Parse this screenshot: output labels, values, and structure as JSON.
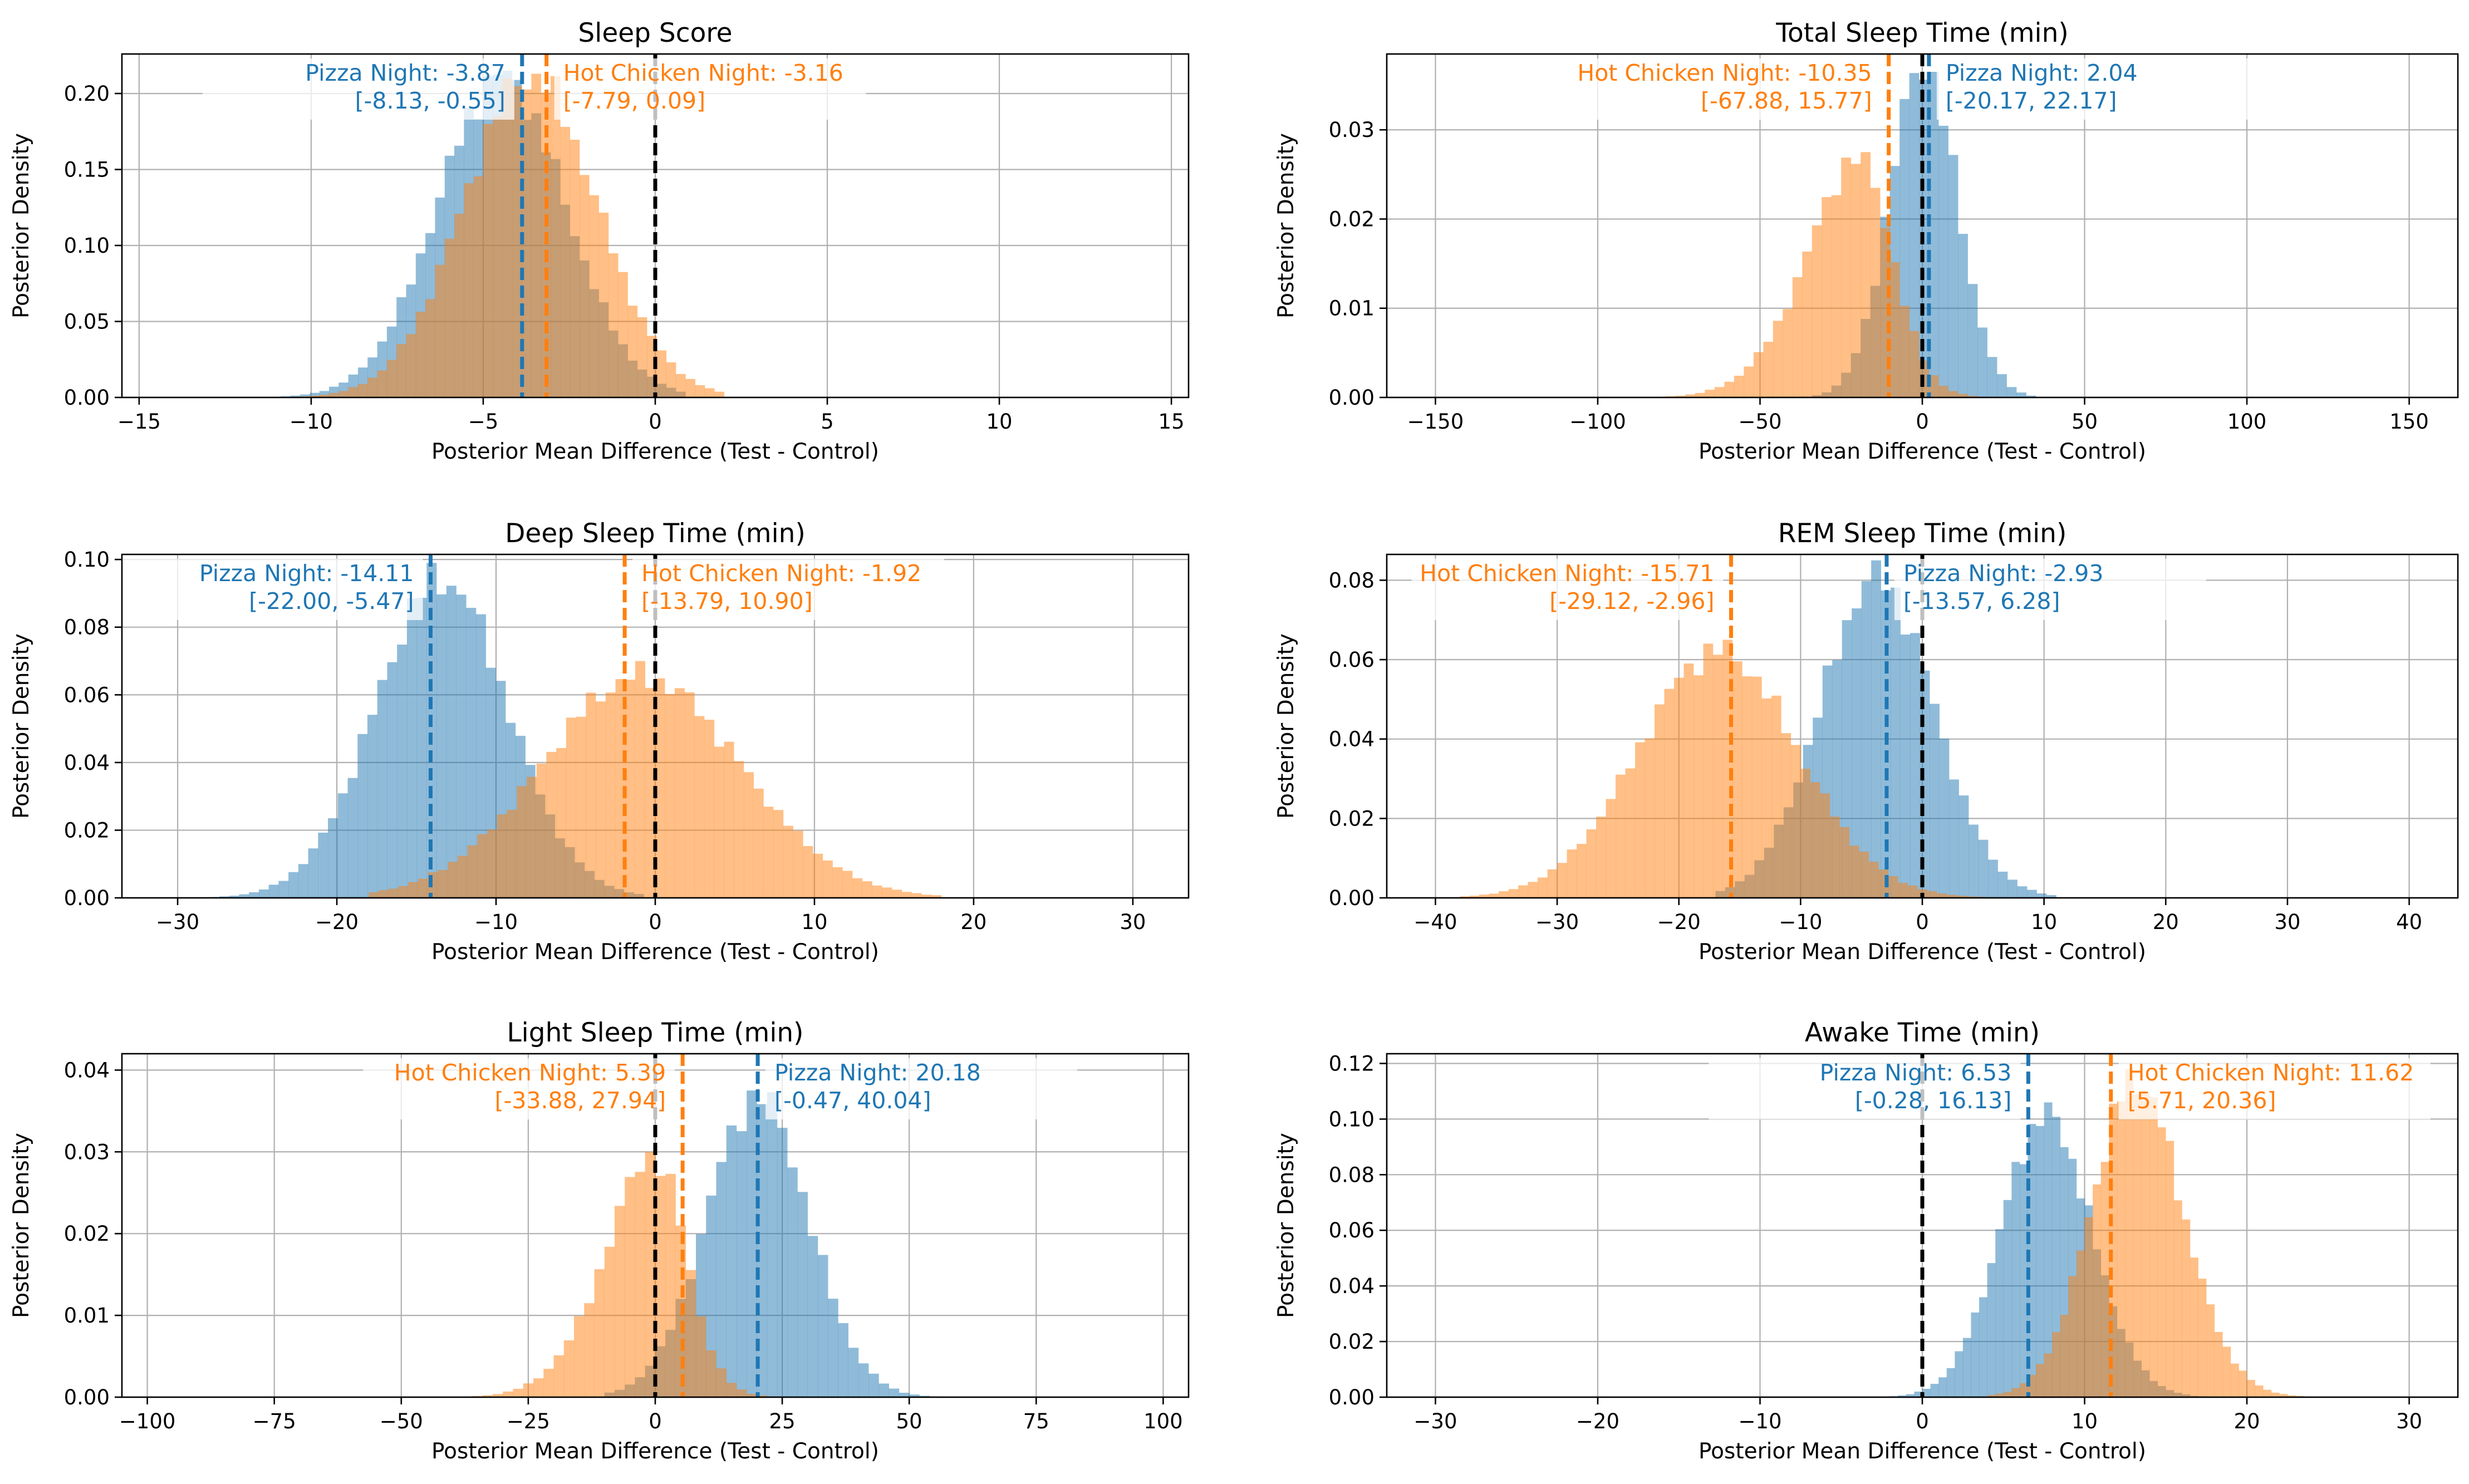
{
  "colors": {
    "pizza": "#1f77b4",
    "pizza_fill": "#8fbbdc",
    "chicken": "#ff7f0e",
    "chicken_fill": "#ffbf87",
    "zero_line": "#000000",
    "grid": "#b0b0b0"
  },
  "chart_data": [
    {
      "type": "histogram",
      "title": "Sleep Score",
      "xlabel": "Posterior Mean Difference (Test - Control)",
      "ylabel": "Posterior Density",
      "xlim": [
        -15.5,
        15.5
      ],
      "ylim": [
        0,
        0.226
      ],
      "xticks": [
        -15,
        -10,
        -5,
        0,
        5,
        10,
        15
      ],
      "yticks": [
        0.0,
        0.05,
        0.1,
        0.15,
        0.2
      ],
      "ytick_labels": [
        "0.00",
        "0.05",
        "0.10",
        "0.15",
        "0.20"
      ],
      "zero_line": 0,
      "series": [
        {
          "name": "Pizza Night",
          "mean": -3.87,
          "ci": [
            -8.13,
            -0.55
          ],
          "sd": 1.95,
          "skew": -0.4,
          "peak": 0.215,
          "min": -12,
          "max": 1,
          "bin": 0.28,
          "label_line1": "Pizza Night: -3.87",
          "label_line2": "[-8.13, -0.55]",
          "label_side": "left"
        },
        {
          "name": "Hot Chicken Night",
          "mean": -3.16,
          "ci": [
            -7.79,
            0.09
          ],
          "sd": 2.0,
          "skew": -0.3,
          "peak": 0.213,
          "min": -12,
          "max": 2,
          "bin": 0.28,
          "label_line1": "Hot Chicken Night: -3.16",
          "label_line2": "[-7.79, 0.09]",
          "label_side": "right"
        }
      ]
    },
    {
      "type": "histogram",
      "title": "Total Sleep Time (min)",
      "xlabel": "Posterior Mean Difference (Test - Control)",
      "ylabel": "Posterior Density",
      "xlim": [
        -165,
        165
      ],
      "ylim": [
        0,
        0.0385
      ],
      "xticks": [
        -150,
        -100,
        -50,
        0,
        50,
        100,
        150
      ],
      "yticks": [
        0.0,
        0.01,
        0.02,
        0.03
      ],
      "ytick_labels": [
        "0.00",
        "0.01",
        "0.02",
        "0.03"
      ],
      "zero_line": 0,
      "series": [
        {
          "name": "Pizza Night",
          "mean": 2.04,
          "ci": [
            -20.17,
            22.17
          ],
          "sd": 10.5,
          "skew": -0.2,
          "peak": 0.0365,
          "min": -40,
          "max": 35,
          "bin": 3.0,
          "label_line1": "Pizza Night: 2.04",
          "label_line2": "[-20.17, 22.17]",
          "label_side": "right"
        },
        {
          "name": "Hot Chicken Night",
          "mean": -10.35,
          "ci": [
            -67.88,
            15.77
          ],
          "sd": 20,
          "skew": -2.0,
          "peak": 0.0275,
          "min": -115,
          "max": 25,
          "bin": 3.0,
          "label_line1": "Hot Chicken Night: -10.35",
          "label_line2": "[-67.88, 15.77]",
          "label_side": "left"
        }
      ]
    },
    {
      "type": "histogram",
      "title": "Deep Sleep Time (min)",
      "xlabel": "Posterior Mean Difference (Test - Control)",
      "ylabel": "Posterior Density",
      "xlim": [
        -33.5,
        33.5
      ],
      "ylim": [
        0,
        0.1015
      ],
      "xticks": [
        -30,
        -20,
        -10,
        0,
        10,
        20,
        30
      ],
      "yticks": [
        0.0,
        0.02,
        0.04,
        0.06,
        0.08,
        0.1
      ],
      "ytick_labels": [
        "0.00",
        "0.02",
        "0.04",
        "0.06",
        "0.08",
        "0.10"
      ],
      "zero_line": 0,
      "series": [
        {
          "name": "Pizza Night",
          "mean": -14.11,
          "ci": [
            -22.0,
            -5.47
          ],
          "sd": 4.2,
          "skew": 0.2,
          "peak": 0.099,
          "min": -28,
          "max": -1,
          "bin": 0.62,
          "label_line1": "Pizza Night: -14.11",
          "label_line2": "[-22.00, -5.47]",
          "label_side": "left"
        },
        {
          "name": "Hot Chicken Night",
          "mean": -1.92,
          "ci": [
            -13.79,
            10.9
          ],
          "sd": 6.3,
          "skew": 0.2,
          "peak": 0.07,
          "min": -18,
          "max": 18,
          "bin": 0.62,
          "label_line1": "Hot Chicken Night: -1.92",
          "label_line2": "[-13.79, 10.90]",
          "label_side": "right"
        }
      ]
    },
    {
      "type": "histogram",
      "title": "REM Sleep Time (min)",
      "xlabel": "Posterior Mean Difference (Test - Control)",
      "ylabel": "Posterior Density",
      "xlim": [
        -44,
        44
      ],
      "ylim": [
        0,
        0.0865
      ],
      "xticks": [
        -40,
        -30,
        -20,
        -10,
        0,
        10,
        20,
        30,
        40
      ],
      "yticks": [
        0.0,
        0.02,
        0.04,
        0.06,
        0.08
      ],
      "ytick_labels": [
        "0.00",
        "0.02",
        "0.04",
        "0.06",
        "0.08"
      ],
      "zero_line": 0,
      "series": [
        {
          "name": "Pizza Night",
          "mean": -2.93,
          "ci": [
            -13.57,
            6.28
          ],
          "sd": 4.7,
          "skew": -0.2,
          "peak": 0.085,
          "min": -17,
          "max": 11,
          "bin": 0.8,
          "label_line1": "Pizza Night: -2.93",
          "label_line2": "[-13.57, 6.28]",
          "label_side": "right"
        },
        {
          "name": "Hot Chicken Night",
          "mean": -15.71,
          "ci": [
            -29.12,
            -2.96
          ],
          "sd": 6.6,
          "skew": -0.2,
          "peak": 0.065,
          "min": -38,
          "max": 5,
          "bin": 0.8,
          "label_line1": "Hot Chicken Night: -15.71",
          "label_line2": "[-29.12, -2.96]",
          "label_side": "left"
        }
      ]
    },
    {
      "type": "histogram",
      "title": "Light Sleep Time (min)",
      "xlabel": "Posterior Mean Difference (Test - Control)",
      "ylabel": "Posterior Density",
      "xlim": [
        -105,
        105
      ],
      "ylim": [
        0,
        0.042
      ],
      "xticks": [
        -100,
        -75,
        -50,
        -25,
        0,
        25,
        50,
        75,
        100
      ],
      "yticks": [
        0.0,
        0.01,
        0.02,
        0.03,
        0.04
      ],
      "ytick_labels": [
        "0.00",
        "0.01",
        "0.02",
        "0.03",
        "0.04"
      ],
      "zero_line": 0,
      "series": [
        {
          "name": "Pizza Night",
          "mean": 20.18,
          "ci": [
            -0.47,
            40.04
          ],
          "sd": 10,
          "skew": 0.0,
          "peak": 0.0375,
          "min": -10,
          "max": 55,
          "bin": 2.0,
          "label_line1": "Pizza Night: 20.18",
          "label_line2": "[-0.47, 40.04]",
          "label_side": "right"
        },
        {
          "name": "Hot Chicken Night",
          "mean": 5.39,
          "ci": [
            -33.88,
            27.94
          ],
          "sd": 12,
          "skew": -2.0,
          "peak": 0.03,
          "min": -60,
          "max": 40,
          "bin": 2.0,
          "label_line1": "Hot Chicken Night: 5.39",
          "label_line2": "[-33.88, 27.94]",
          "label_side": "left"
        }
      ]
    },
    {
      "type": "histogram",
      "title": "Awake Time (min)",
      "xlabel": "Posterior Mean Difference (Test - Control)",
      "ylabel": "Posterior Density",
      "xlim": [
        -33,
        33
      ],
      "ylim": [
        0,
        0.1235
      ],
      "xticks": [
        -30,
        -20,
        -10,
        0,
        10,
        20,
        30
      ],
      "yticks": [
        0.0,
        0.02,
        0.04,
        0.06,
        0.08,
        0.1,
        0.12
      ],
      "ytick_labels": [
        "0.00",
        "0.02",
        "0.04",
        "0.06",
        "0.08",
        "0.10",
        "0.12"
      ],
      "zero_line": 0,
      "series": [
        {
          "name": "Pizza Night",
          "mean": 6.53,
          "ci": [
            -0.28,
            16.13
          ],
          "sd": 3.0,
          "skew": 0.5,
          "peak": 0.106,
          "min": -3,
          "max": 19,
          "bin": 0.5,
          "label_line1": "Pizza Night: 6.53",
          "label_line2": "[-0.28, 16.13]",
          "label_side": "left"
        },
        {
          "name": "Hot Chicken Night",
          "mean": 11.62,
          "ci": [
            5.71,
            20.36
          ],
          "sd": 3.3,
          "skew": 0.8,
          "peak": 0.118,
          "min": 4,
          "max": 27,
          "bin": 0.5,
          "label_line1": "Hot Chicken Night: 11.62",
          "label_line2": "[5.71, 20.36]",
          "label_side": "right"
        }
      ]
    }
  ]
}
